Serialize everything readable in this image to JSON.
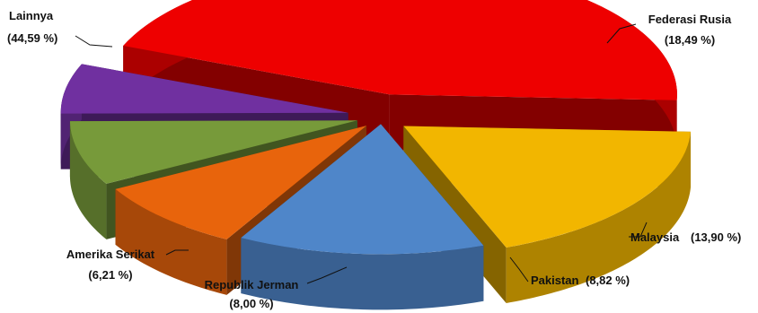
{
  "chart_data": {
    "type": "pie",
    "title": "",
    "slices": [
      {
        "label": "Lainnya",
        "pct_label": "(44,59 %)",
        "value": 44.59,
        "color": "#ee0000"
      },
      {
        "label": "Federasi Rusia",
        "pct_label": "(18,49 %)",
        "value": 18.49,
        "color": "#f2b600"
      },
      {
        "label": "Malaysia",
        "pct_label": "(13,90 %)",
        "value": 13.9,
        "color": "#4f86c9"
      },
      {
        "label": "Pakistan",
        "pct_label": "(8,82 %)",
        "value": 8.82,
        "color": "#e8640c"
      },
      {
        "label": "Republik Jerman",
        "pct_label": "(8,00 %)",
        "value": 8.0,
        "color": "#779a3a"
      },
      {
        "label": "Amerika Serikat",
        "pct_label": "(6,21 %)",
        "value": 6.21,
        "color": "#7030a0"
      }
    ],
    "legend": "none",
    "style": "3d exploded pie with leader-line labels"
  }
}
